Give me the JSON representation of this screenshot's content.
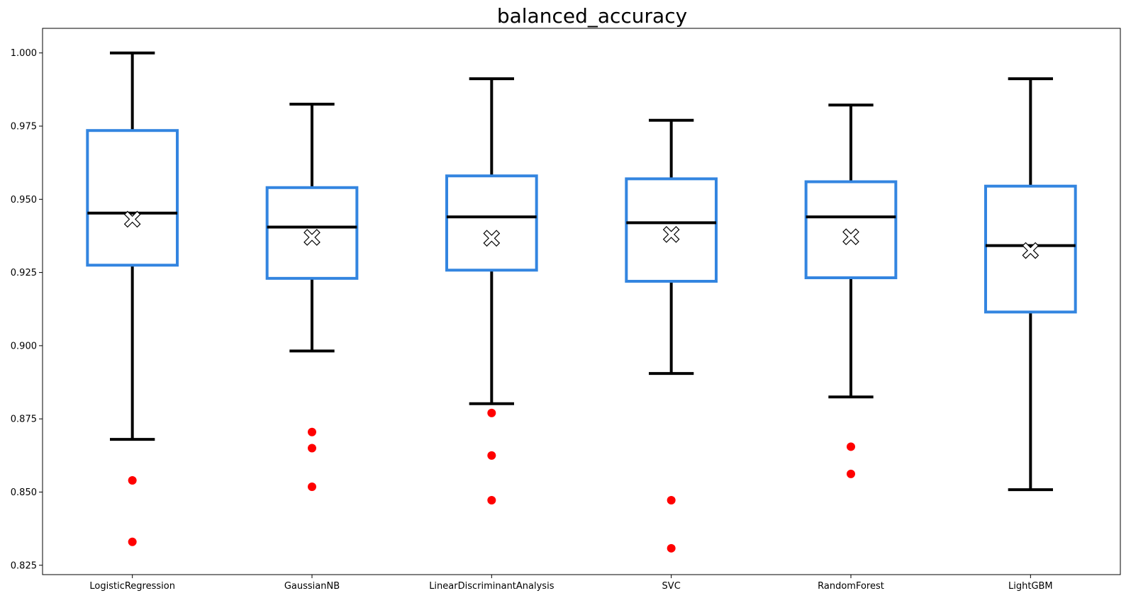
{
  "chart_data": {
    "type": "box",
    "title": "balanced_accuracy",
    "xlabel": "",
    "ylabel": "",
    "ylim": [
      0.8218,
      1.0084
    ],
    "yticks": [
      0.825,
      0.85,
      0.875,
      0.9,
      0.925,
      0.95,
      0.975,
      1.0
    ],
    "ytick_labels": [
      "0.825",
      "0.850",
      "0.875",
      "0.900",
      "0.925",
      "0.950",
      "0.975",
      "1.000"
    ],
    "grid": false,
    "legend": "none",
    "colors": {
      "box": "#3385e0",
      "median": "#000000",
      "whisker": "#000000",
      "outlier": "#ff0000",
      "mean_marker_fill": "#ffffff",
      "mean_marker_edge": "#000000"
    },
    "categories": [
      "LogisticRegression",
      "GaussianNB",
      "LinearDiscriminantAnalysis",
      "SVC",
      "RandomForest",
      "LightGBM"
    ],
    "boxes": [
      {
        "name": "LogisticRegression",
        "whislo": 0.868,
        "q1": 0.9275,
        "median": 0.9453,
        "q3": 0.9735,
        "whishi": 1.0,
        "mean": 0.9432,
        "fliers": [
          0.854,
          0.833
        ]
      },
      {
        "name": "GaussianNB",
        "whislo": 0.8982,
        "q1": 0.923,
        "median": 0.9405,
        "q3": 0.954,
        "whishi": 0.9825,
        "mean": 0.937,
        "fliers": [
          0.8705,
          0.865,
          0.8518
        ]
      },
      {
        "name": "LinearDiscriminantAnalysis",
        "whislo": 0.8802,
        "q1": 0.9258,
        "median": 0.944,
        "q3": 0.958,
        "whishi": 0.9912,
        "mean": 0.9367,
        "fliers": [
          0.877,
          0.8625,
          0.8472
        ]
      },
      {
        "name": "SVC",
        "whislo": 0.8905,
        "q1": 0.922,
        "median": 0.942,
        "q3": 0.957,
        "whishi": 0.977,
        "mean": 0.938,
        "fliers": [
          0.8472,
          0.8308
        ]
      },
      {
        "name": "RandomForest",
        "whislo": 0.8825,
        "q1": 0.9232,
        "median": 0.944,
        "q3": 0.956,
        "whishi": 0.9822,
        "mean": 0.9372,
        "fliers": [
          0.8655,
          0.8562
        ]
      },
      {
        "name": "LightGBM",
        "whislo": 0.8508,
        "q1": 0.9115,
        "median": 0.9342,
        "q3": 0.9545,
        "whishi": 0.9912,
        "mean": 0.9325,
        "fliers": []
      }
    ]
  }
}
